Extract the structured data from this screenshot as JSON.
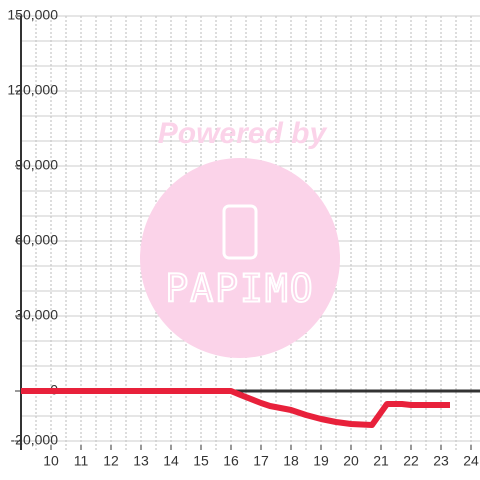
{
  "chart_data": {
    "type": "line",
    "x": [
      9,
      16,
      16.3,
      17,
      17.3,
      18,
      18.5,
      19,
      19.5,
      20,
      20.7,
      21.2,
      21.7,
      22,
      23.3
    ],
    "series": [
      {
        "color": "#e8213b",
        "values": [
          0,
          0,
          -1500,
          -4800,
          -6000,
          -7600,
          -9600,
          -11200,
          -12400,
          -13200,
          -13600,
          -5200,
          -5200,
          -5600,
          -5600
        ]
      }
    ],
    "xlim": [
      9,
      24.3
    ],
    "xticks": [
      10,
      11,
      12,
      13,
      14,
      15,
      16,
      17,
      18,
      19,
      20,
      21,
      22,
      23,
      24
    ],
    "ylim": [
      -20000,
      150000
    ],
    "yticks": [
      {
        "value": -20000,
        "label": "-20,000"
      },
      0,
      {
        "value": 30000,
        "label": "30,000"
      },
      {
        "value": 60000,
        "label": "60,000"
      },
      {
        "value": 90000,
        "label": "90,000"
      },
      {
        "value": 120000,
        "label": "120,000"
      },
      {
        "value": 150000,
        "label": "150,000"
      }
    ],
    "grid": true,
    "x_minor_step": 0.5,
    "y_minor_step": 10000,
    "watermark": {
      "text": "Powered by",
      "logo": "PAPIMO"
    }
  }
}
